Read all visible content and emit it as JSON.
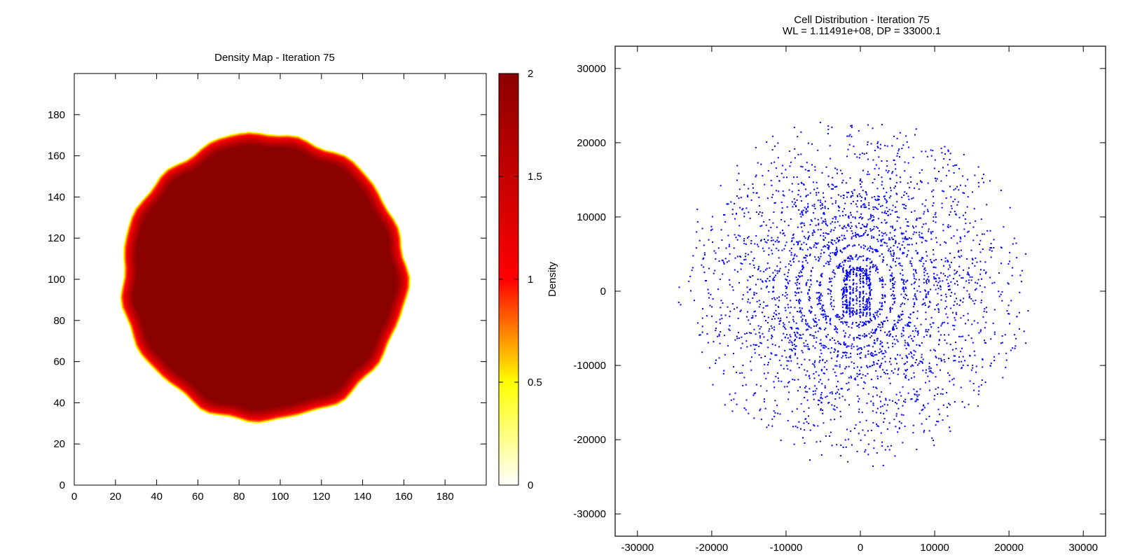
{
  "chart_data": [
    {
      "type": "heatmap",
      "title": "Density Map - Iteration 75",
      "xlim": [
        0,
        200
      ],
      "ylim": [
        0,
        200
      ],
      "x_ticks": [
        0,
        20,
        40,
        60,
        80,
        100,
        120,
        140,
        160,
        180
      ],
      "y_ticks": [
        0,
        20,
        40,
        60,
        80,
        100,
        120,
        140,
        160,
        180
      ],
      "colorbar": {
        "label": "Density",
        "range": [
          0,
          2
        ],
        "ticks": [
          {
            "value": 0,
            "label": "0"
          },
          {
            "value": 0.5,
            "label": "0.5"
          },
          {
            "value": 1,
            "label": "1"
          },
          {
            "value": 1.5,
            "label": "1.5"
          },
          {
            "value": 2,
            "label": "2"
          }
        ],
        "stops": [
          {
            "value": 0,
            "color": "#ffffff"
          },
          {
            "value": 0.5,
            "color": "#ffff00"
          },
          {
            "value": 1,
            "color": "#ff0000"
          },
          {
            "value": 2,
            "color": "#8b0000"
          }
        ]
      },
      "region": {
        "shape": "disc",
        "center": [
          92,
          101
        ],
        "radius": 66,
        "inner_value": 2,
        "edge_width": 7,
        "outer_value": 0
      }
    },
    {
      "type": "scatter",
      "title": "Cell Distribution - Iteration 75",
      "subtitle": "WL = 1.11491e+08, DP = 33000.1",
      "xlim": [
        -33000,
        33000
      ],
      "ylim": [
        -33000,
        33000
      ],
      "x_ticks": [
        -30000,
        -20000,
        -10000,
        0,
        10000,
        20000,
        30000
      ],
      "y_ticks": [
        -30000,
        -20000,
        -10000,
        0,
        10000,
        20000,
        30000
      ],
      "point_color": "#0000ff",
      "distribution": {
        "center": [
          -500,
          0
        ],
        "rings": [
          {
            "rx": 1800,
            "ry": 3000,
            "count": 140
          },
          {
            "rx": 3600,
            "ry": 4600,
            "count": 180
          },
          {
            "rx": 5000,
            "ry": 6200,
            "count": 220
          },
          {
            "rx": 6500,
            "ry": 7600,
            "count": 260
          },
          {
            "rx": 8000,
            "ry": 8800,
            "count": 300
          },
          {
            "rx": 9500,
            "ry": 10200,
            "count": 300
          },
          {
            "rx": 11000,
            "ry": 11600,
            "count": 300
          },
          {
            "rx": 12500,
            "ry": 13000,
            "count": 290
          },
          {
            "rx": 14000,
            "ry": 14600,
            "count": 270
          },
          {
            "rx": 15500,
            "ry": 16200,
            "count": 250
          },
          {
            "rx": 17000,
            "ry": 17800,
            "count": 220
          },
          {
            "rx": 18500,
            "ry": 19400,
            "count": 190
          },
          {
            "rx": 20000,
            "ry": 20800,
            "count": 160
          },
          {
            "rx": 21500,
            "ry": 21800,
            "count": 120
          },
          {
            "rx": 23000,
            "ry": 22600,
            "count": 80
          }
        ]
      }
    }
  ]
}
